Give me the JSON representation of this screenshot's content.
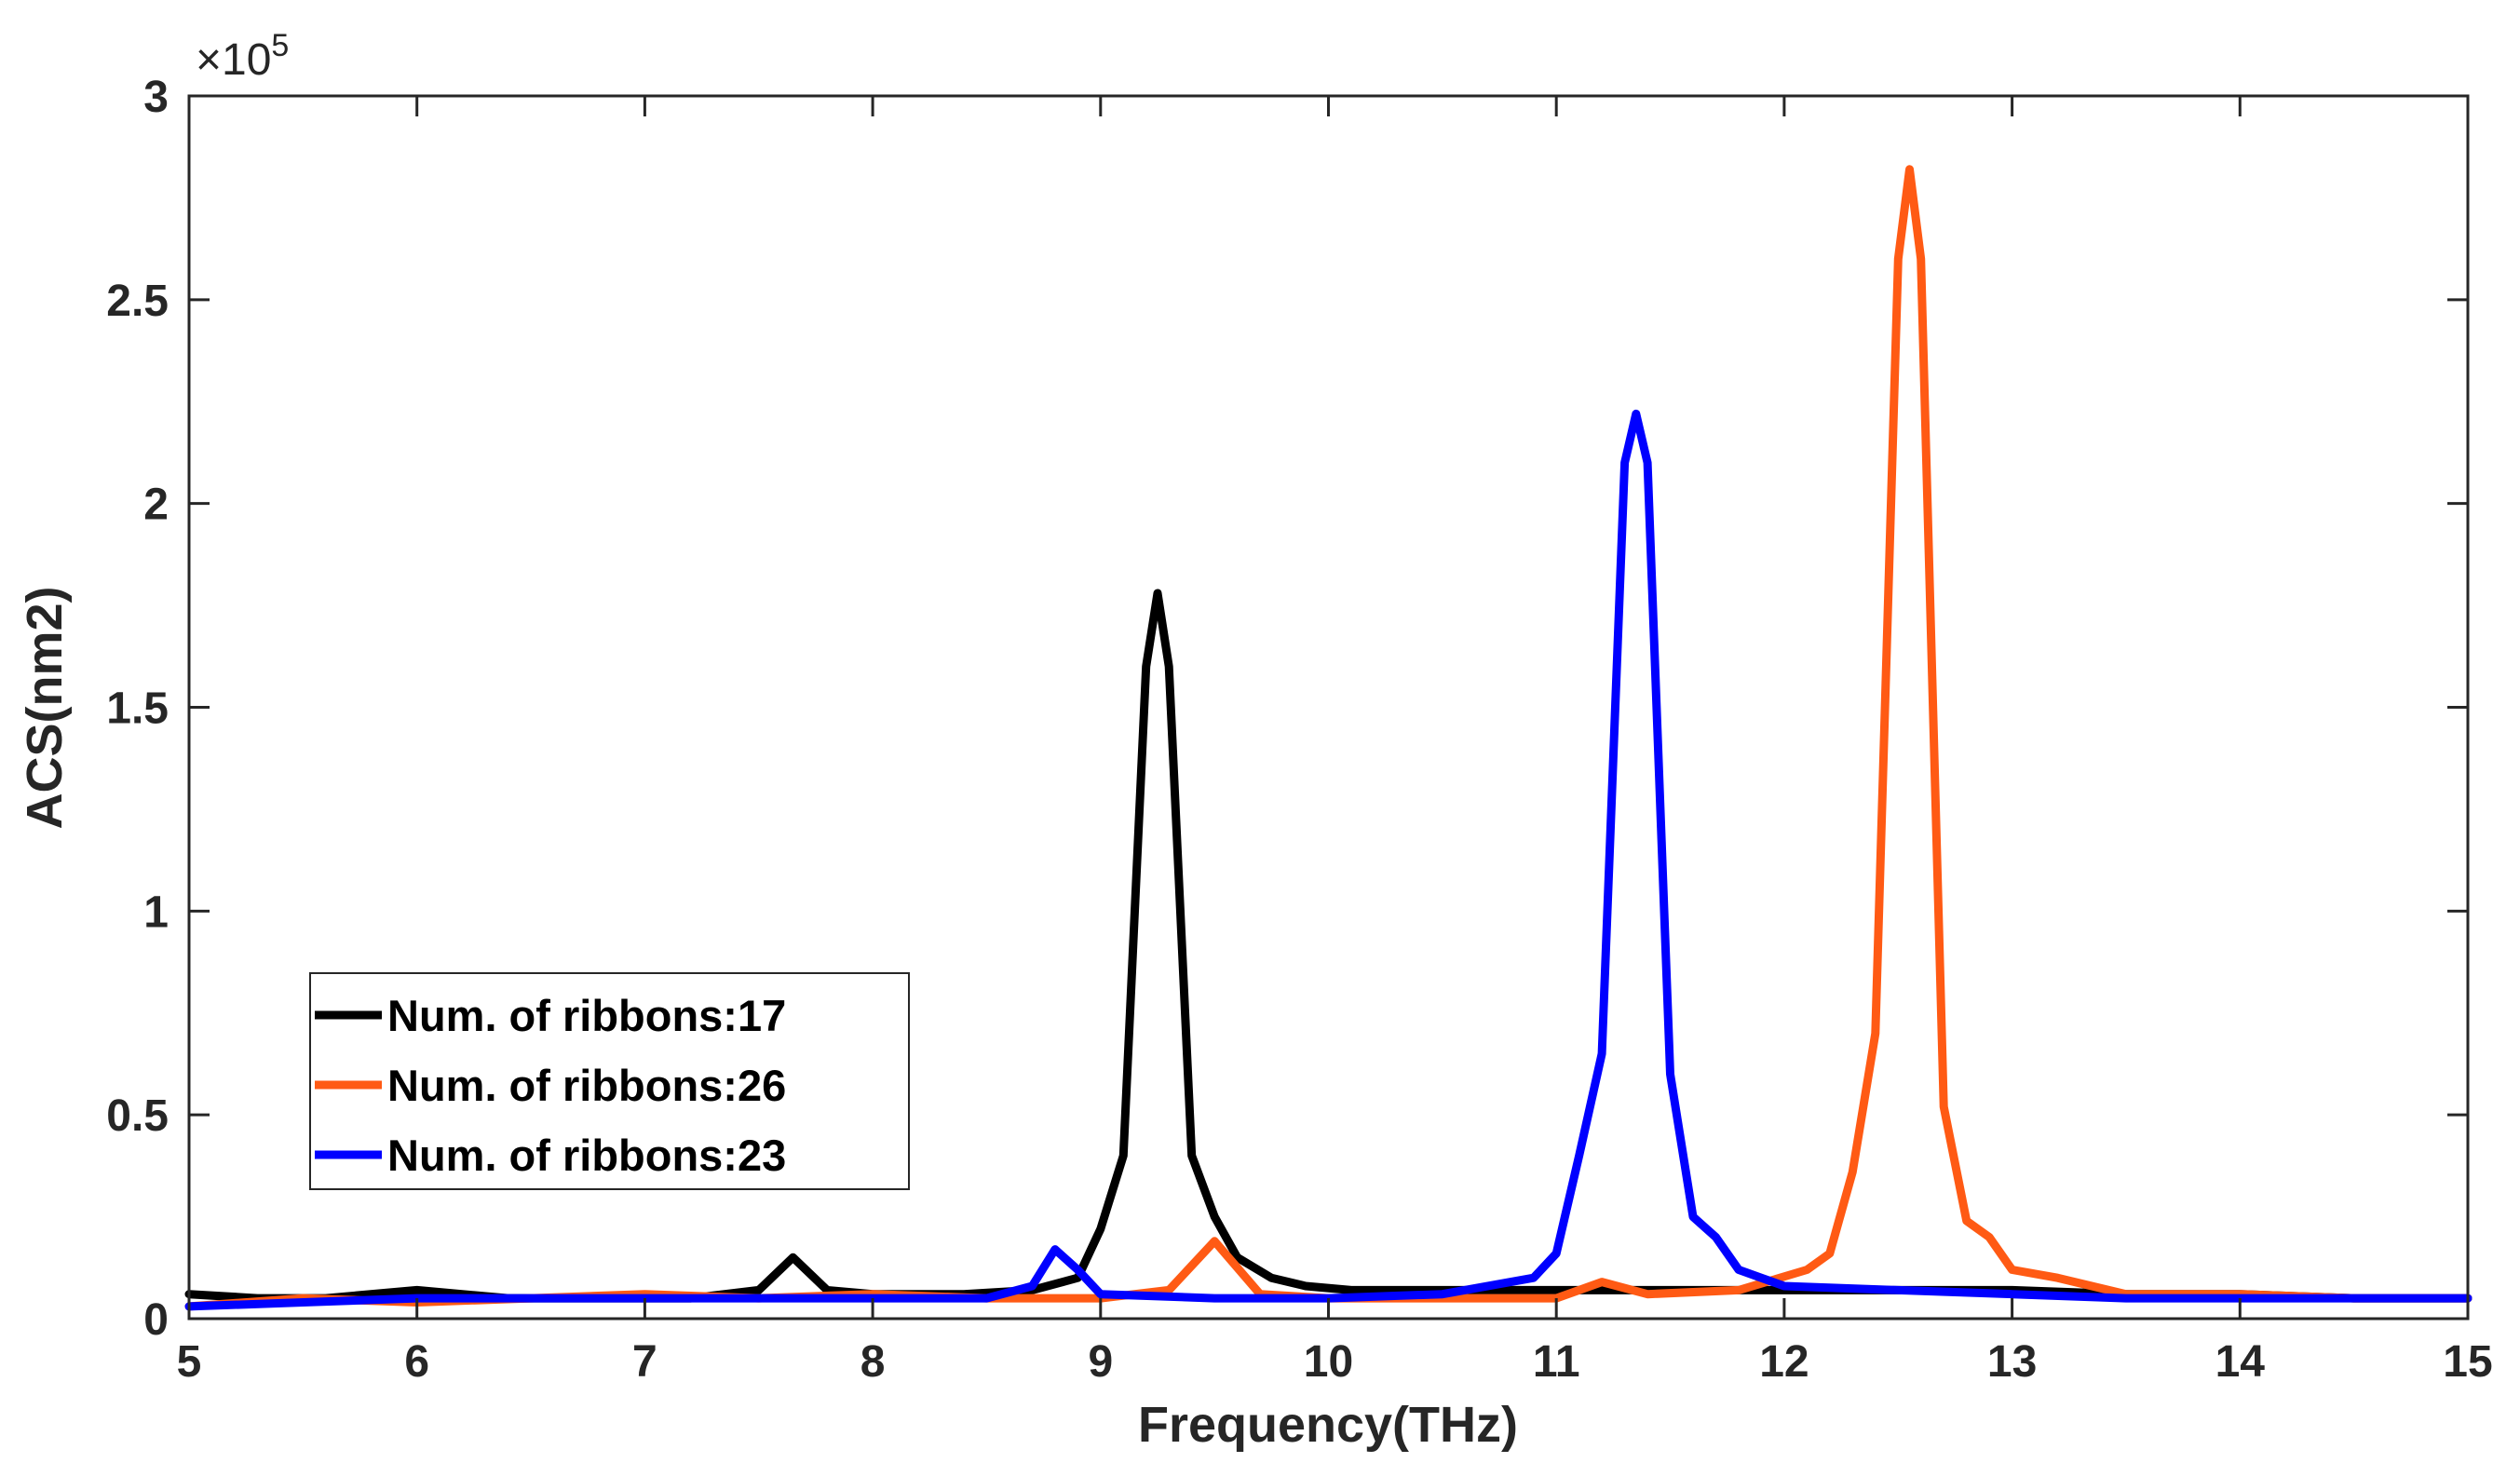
{
  "chart_data": {
    "type": "line",
    "title": "",
    "xlabel": "Frequency(THz)",
    "ylabel": "ACS(nm2)",
    "xlim": [
      5,
      15
    ],
    "ylim": [
      0,
      3
    ],
    "y_multiplier": {
      "prefix": "×10",
      "exponent": "5"
    },
    "xticks": [
      5,
      6,
      7,
      8,
      9,
      10,
      11,
      12,
      13,
      14,
      15
    ],
    "xtick_labels": [
      "5",
      "6",
      "7",
      "8",
      "9",
      "10",
      "11",
      "12",
      "13",
      "14",
      "15"
    ],
    "yticks": [
      0,
      0.5,
      1,
      1.5,
      2,
      2.5,
      3
    ],
    "ytick_labels": [
      "0",
      "0.5",
      "1",
      "1.5",
      "2",
      "2.5",
      "3"
    ],
    "grid": false,
    "legend_position": "lower-left",
    "series": [
      {
        "name": "Num. of ribbons:17",
        "color": "#000000",
        "x": [
          5.0,
          5.3,
          5.6,
          6.0,
          6.4,
          6.8,
          7.2,
          7.5,
          7.65,
          7.8,
          8.0,
          8.4,
          8.7,
          8.9,
          9.0,
          9.1,
          9.2,
          9.25,
          9.3,
          9.4,
          9.5,
          9.6,
          9.75,
          9.9,
          10.1,
          10.5,
          11.0,
          11.5,
          12.0,
          12.5,
          13.0,
          13.5,
          14.0,
          14.5,
          15.0
        ],
        "y": [
          0.06,
          0.05,
          0.05,
          0.07,
          0.05,
          0.05,
          0.05,
          0.07,
          0.15,
          0.07,
          0.06,
          0.06,
          0.07,
          0.1,
          0.22,
          0.4,
          1.6,
          1.78,
          1.6,
          0.4,
          0.25,
          0.15,
          0.1,
          0.08,
          0.07,
          0.07,
          0.07,
          0.07,
          0.07,
          0.07,
          0.07,
          0.06,
          0.06,
          0.05,
          0.05
        ]
      },
      {
        "name": "Num. of ribbons:26",
        "color": "#FF5A14",
        "x": [
          5.0,
          5.5,
          6.0,
          6.5,
          7.0,
          7.5,
          8.0,
          8.5,
          9.0,
          9.3,
          9.5,
          9.7,
          10.0,
          10.5,
          11.0,
          11.2,
          11.4,
          11.8,
          12.1,
          12.2,
          12.3,
          12.4,
          12.5,
          12.55,
          12.6,
          12.7,
          12.8,
          12.9,
          13.0,
          13.2,
          13.5,
          14.0,
          14.5,
          15.0
        ],
        "y": [
          0.03,
          0.05,
          0.04,
          0.05,
          0.06,
          0.05,
          0.06,
          0.05,
          0.05,
          0.07,
          0.19,
          0.06,
          0.05,
          0.05,
          0.05,
          0.09,
          0.06,
          0.07,
          0.12,
          0.16,
          0.36,
          0.7,
          2.6,
          2.82,
          2.6,
          0.52,
          0.24,
          0.2,
          0.12,
          0.1,
          0.06,
          0.06,
          0.05,
          0.05
        ]
      },
      {
        "name": "Num. of ribbons:23",
        "color": "#0000FF",
        "x": [
          5.0,
          5.5,
          6.0,
          6.5,
          7.0,
          7.5,
          8.0,
          8.5,
          8.7,
          8.8,
          8.9,
          9.0,
          9.5,
          10.0,
          10.5,
          10.9,
          11.0,
          11.1,
          11.2,
          11.3,
          11.35,
          11.4,
          11.5,
          11.6,
          11.7,
          11.8,
          11.9,
          12.0,
          12.5,
          13.0,
          13.5,
          14.0,
          14.5,
          15.0
        ],
        "y": [
          0.03,
          0.04,
          0.05,
          0.05,
          0.05,
          0.05,
          0.05,
          0.05,
          0.08,
          0.17,
          0.12,
          0.06,
          0.05,
          0.05,
          0.06,
          0.1,
          0.16,
          0.4,
          0.65,
          2.1,
          2.22,
          2.1,
          0.6,
          0.25,
          0.2,
          0.12,
          0.1,
          0.08,
          0.07,
          0.06,
          0.05,
          0.05,
          0.05,
          0.05
        ]
      }
    ]
  }
}
